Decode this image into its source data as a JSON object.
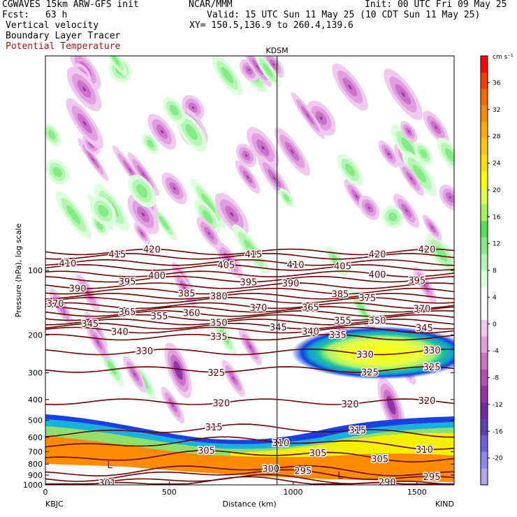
{
  "header": {
    "model": "CGWAVES 15km ARW-GFS init",
    "producer": "NCAR/MMM",
    "init": "Init: 00 UTC Fri 09 May 25",
    "fcst_label": "Fcst:",
    "fcst_value": "63 h",
    "valid": "Valid: 15 UTC Sun 11 May 25 (10 CDT Sun 11 May 25)",
    "field1": "Vertical velocity",
    "xy": "XY= 150.5,136.9 to 260.4,139.6",
    "field2": "Boundary Layer Tracer",
    "field3": "Potential Temperature"
  },
  "colors": {
    "isentrope": "#6b0000",
    "ground": "#ffffff",
    "marker_line": "#000000"
  },
  "chart_data": {
    "type": "heatmap",
    "title": "",
    "xlabel": "Distance (km)",
    "ylabel": "Pressure (hPa), log scale",
    "xlim": [
      0,
      1650
    ],
    "ylim": [
      1000,
      10
    ],
    "y_scale": "log",
    "x_ticks": [
      "0",
      "500",
      "1000",
      "1500"
    ],
    "x_tick_values": [
      0,
      500,
      1000,
      1500
    ],
    "y_ticks": [
      "100",
      "200",
      "300",
      "400",
      "500",
      "600",
      "700",
      "800",
      "900",
      "1000"
    ],
    "y_tick_values": [
      100,
      200,
      300,
      400,
      500,
      600,
      700,
      800,
      900,
      1000
    ],
    "left_station": "KBJC",
    "right_station": "KIND",
    "marker_station": "KDSM",
    "marker_x": 935,
    "colorbar": {
      "unit": "cm s⁻¹",
      "labels": [
        "36",
        "32",
        "28",
        "24",
        "20",
        "16",
        "12",
        "8",
        "4",
        "0",
        "-4",
        "-8",
        "-12",
        "-16",
        "-20"
      ],
      "values": [
        36,
        32,
        28,
        24,
        20,
        16,
        12,
        8,
        4,
        0,
        -4,
        -8,
        -12,
        -16,
        -20
      ],
      "colors": [
        "#ff0000",
        "#ff3a00",
        "#ff6a00",
        "#ff8c00",
        "#ffaa00",
        "#ffc800",
        "#ffe000",
        "#ffff00",
        "#e0ff50",
        "#aaf060",
        "#55e055",
        "#85eb85",
        "#b5f5b5",
        "#dcffdc",
        "#ffffff",
        "#ffffff",
        "#f0c8f0",
        "#e0a0e0",
        "#cc70cc",
        "#b050b5",
        "#9035a5",
        "#7a2aa0",
        "#6040b0",
        "#6f5fd8",
        "#8f85ea",
        "#b0a8f2"
      ]
    },
    "isentropes": [
      {
        "theta": 420,
        "p": 82,
        "labels_x": [
          430,
          1340,
          1540
        ]
      },
      {
        "theta": 415,
        "p": 86,
        "labels_x": [
          290,
          840
        ]
      },
      {
        "theta": 410,
        "p": 92,
        "labels_x": [
          90,
          1010
        ]
      },
      {
        "theta": 405,
        "p": 97,
        "labels_x": [
          730,
          1200
        ]
      },
      {
        "theta": 400,
        "p": 104,
        "labels_x": [
          450,
          1340
        ]
      },
      {
        "theta": 395,
        "p": 110,
        "labels_x": [
          330,
          820,
          1500
        ]
      },
      {
        "theta": 390,
        "p": 118,
        "labels_x": [
          130,
          990
        ]
      },
      {
        "theta": 385,
        "p": 125,
        "labels_x": [
          570,
          1190
        ]
      },
      {
        "theta": 380,
        "p": 132,
        "labels_x": [
          700
        ]
      },
      {
        "theta": 375,
        "p": 138,
        "labels_x": [
          1300
        ]
      },
      {
        "theta": 370,
        "p": 146,
        "labels_x": [
          40,
          860,
          1520
        ]
      },
      {
        "theta": 365,
        "p": 152,
        "labels_x": [
          330,
          1070
        ]
      },
      {
        "theta": 360,
        "p": 159,
        "labels_x": [
          590
        ]
      },
      {
        "theta": 355,
        "p": 166,
        "labels_x": [
          460,
          1200
        ]
      },
      {
        "theta": 350,
        "p": 174,
        "labels_x": [
          700,
          1340
        ]
      },
      {
        "theta": 345,
        "p": 182,
        "labels_x": [
          180,
          940,
          1530
        ]
      },
      {
        "theta": 340,
        "p": 190,
        "labels_x": [
          300,
          1070
        ]
      },
      {
        "theta": 335,
        "p": 205,
        "labels_x": [
          700,
          1180
        ]
      },
      {
        "theta": 330,
        "p": 240,
        "labels_x": [
          400,
          1290,
          1560
        ]
      },
      {
        "theta": 325,
        "p": 290,
        "labels_x": [
          690,
          1310,
          1560
        ]
      },
      {
        "theta": 320,
        "p": 410,
        "labels_x": [
          710,
          1230,
          1540
        ]
      },
      {
        "theta": 315,
        "p": 560,
        "labels_x": [
          680,
          1260
        ]
      },
      {
        "theta": 310,
        "p": 640,
        "labels_x": [
          950,
          1530
        ]
      },
      {
        "theta": 305,
        "p": 735,
        "labels_x": [
          650,
          1100,
          1350
        ]
      },
      {
        "theta": 300,
        "p": 860,
        "labels_x": [
          910
        ]
      },
      {
        "theta": 295,
        "p": 905,
        "labels_x": [
          1040,
          1560
        ]
      },
      {
        "theta": 290,
        "p": 960,
        "labels_x": [
          1380
        ]
      },
      {
        "theta": 301,
        "p": 985,
        "labels_x": [
          250
        ]
      }
    ],
    "low_markers": [
      {
        "label": "L",
        "x": 260,
        "p": 835
      },
      {
        "label": "L",
        "x": 1190,
        "p": 935
      }
    ]
  }
}
